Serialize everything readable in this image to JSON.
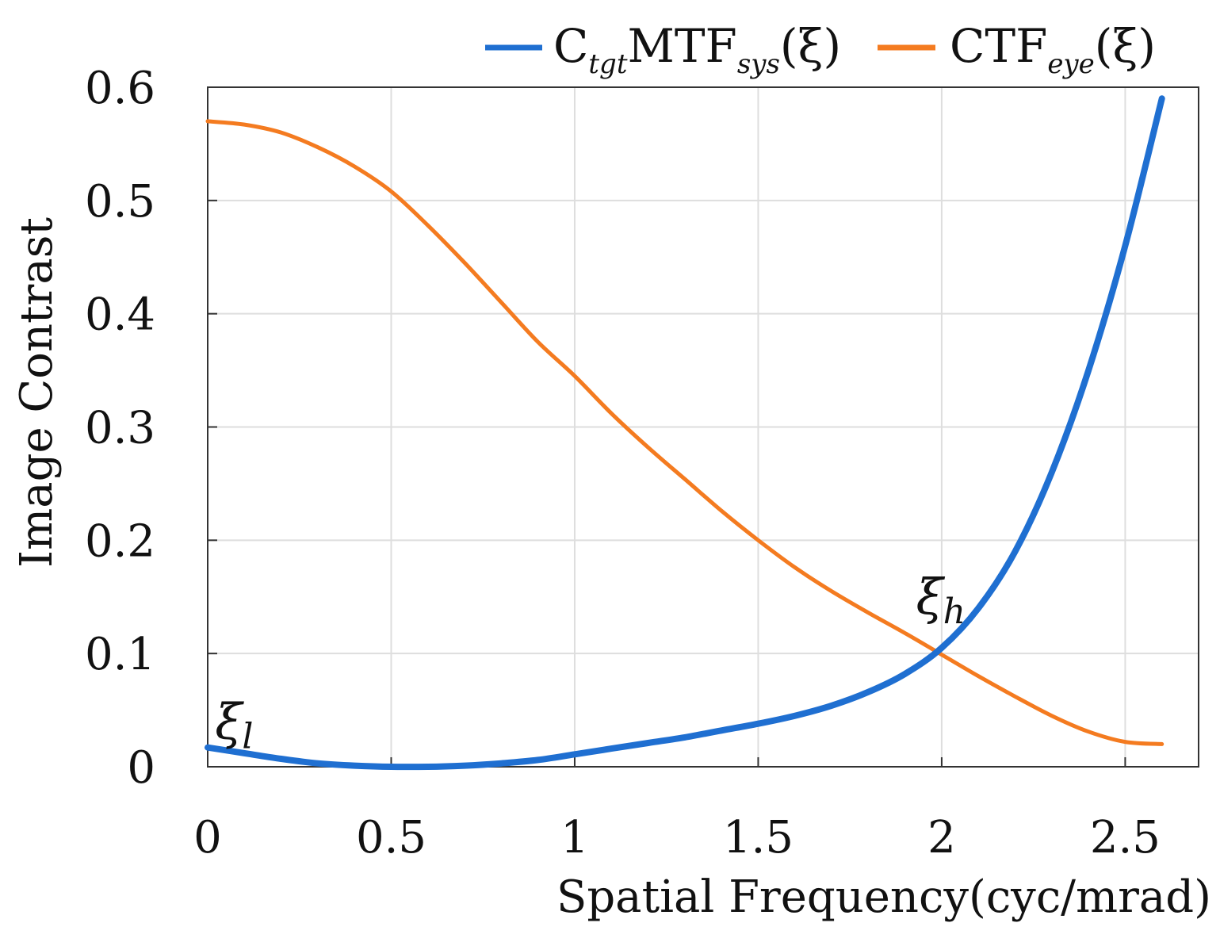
{
  "chart_data": {
    "type": "line",
    "xlabel": "Spatial Frequency(cyc/mrad)",
    "ylabel": "Image Contrast",
    "xlim": [
      0,
      2.7
    ],
    "ylim": [
      0,
      0.6
    ],
    "xticks": [
      0,
      0.5,
      1,
      1.5,
      2,
      2.5
    ],
    "xtick_labels": [
      "0",
      "0.5",
      "1",
      "1.5",
      "2",
      "2.5"
    ],
    "yticks": [
      0,
      0.1,
      0.2,
      0.3,
      0.4,
      0.5,
      0.6
    ],
    "ytick_labels": [
      "0",
      "0.1",
      "0.2",
      "0.3",
      "0.4",
      "0.5",
      "0.6"
    ],
    "grid": true,
    "legend_position": "top (above plot)",
    "series": [
      {
        "legend": {
          "main": "C",
          "sub1": "tgt",
          "mid": "MTF",
          "sub2": "sys",
          "arg": "(ξ)"
        },
        "color": "#1f6fd1",
        "x": [
          0,
          0.1,
          0.2,
          0.3,
          0.4,
          0.5,
          0.6,
          0.7,
          0.8,
          0.9,
          1.0,
          1.1,
          1.2,
          1.3,
          1.4,
          1.5,
          1.6,
          1.7,
          1.8,
          1.9,
          2.0,
          2.1,
          2.2,
          2.3,
          2.4,
          2.5,
          2.6
        ],
        "y": [
          0.017,
          0.012,
          0.007,
          0.003,
          0.001,
          0.0,
          0.0,
          0.001,
          0.003,
          0.006,
          0.011,
          0.016,
          0.021,
          0.026,
          0.032,
          0.038,
          0.045,
          0.054,
          0.066,
          0.082,
          0.105,
          0.14,
          0.19,
          0.26,
          0.35,
          0.46,
          0.59
        ]
      },
      {
        "legend": {
          "main": "CTF",
          "sub": "eye",
          "arg": "(ξ)"
        },
        "color": "#f47b20",
        "x": [
          0,
          0.1,
          0.2,
          0.3,
          0.4,
          0.5,
          0.6,
          0.7,
          0.8,
          0.9,
          1.0,
          1.1,
          1.2,
          1.3,
          1.4,
          1.5,
          1.6,
          1.7,
          1.8,
          1.9,
          2.0,
          2.1,
          2.2,
          2.3,
          2.4,
          2.5,
          2.6
        ],
        "y": [
          0.57,
          0.567,
          0.56,
          0.547,
          0.53,
          0.508,
          0.478,
          0.445,
          0.41,
          0.375,
          0.345,
          0.312,
          0.282,
          0.254,
          0.226,
          0.2,
          0.176,
          0.155,
          0.136,
          0.118,
          0.099,
          0.08,
          0.062,
          0.045,
          0.031,
          0.022,
          0.02
        ]
      }
    ],
    "annotations": [
      {
        "base": "ξ",
        "sub": "l",
        "x": 0.02,
        "y": 0.025
      },
      {
        "base": "ξ",
        "sub": "h",
        "x": 1.93,
        "y": 0.135
      }
    ]
  }
}
